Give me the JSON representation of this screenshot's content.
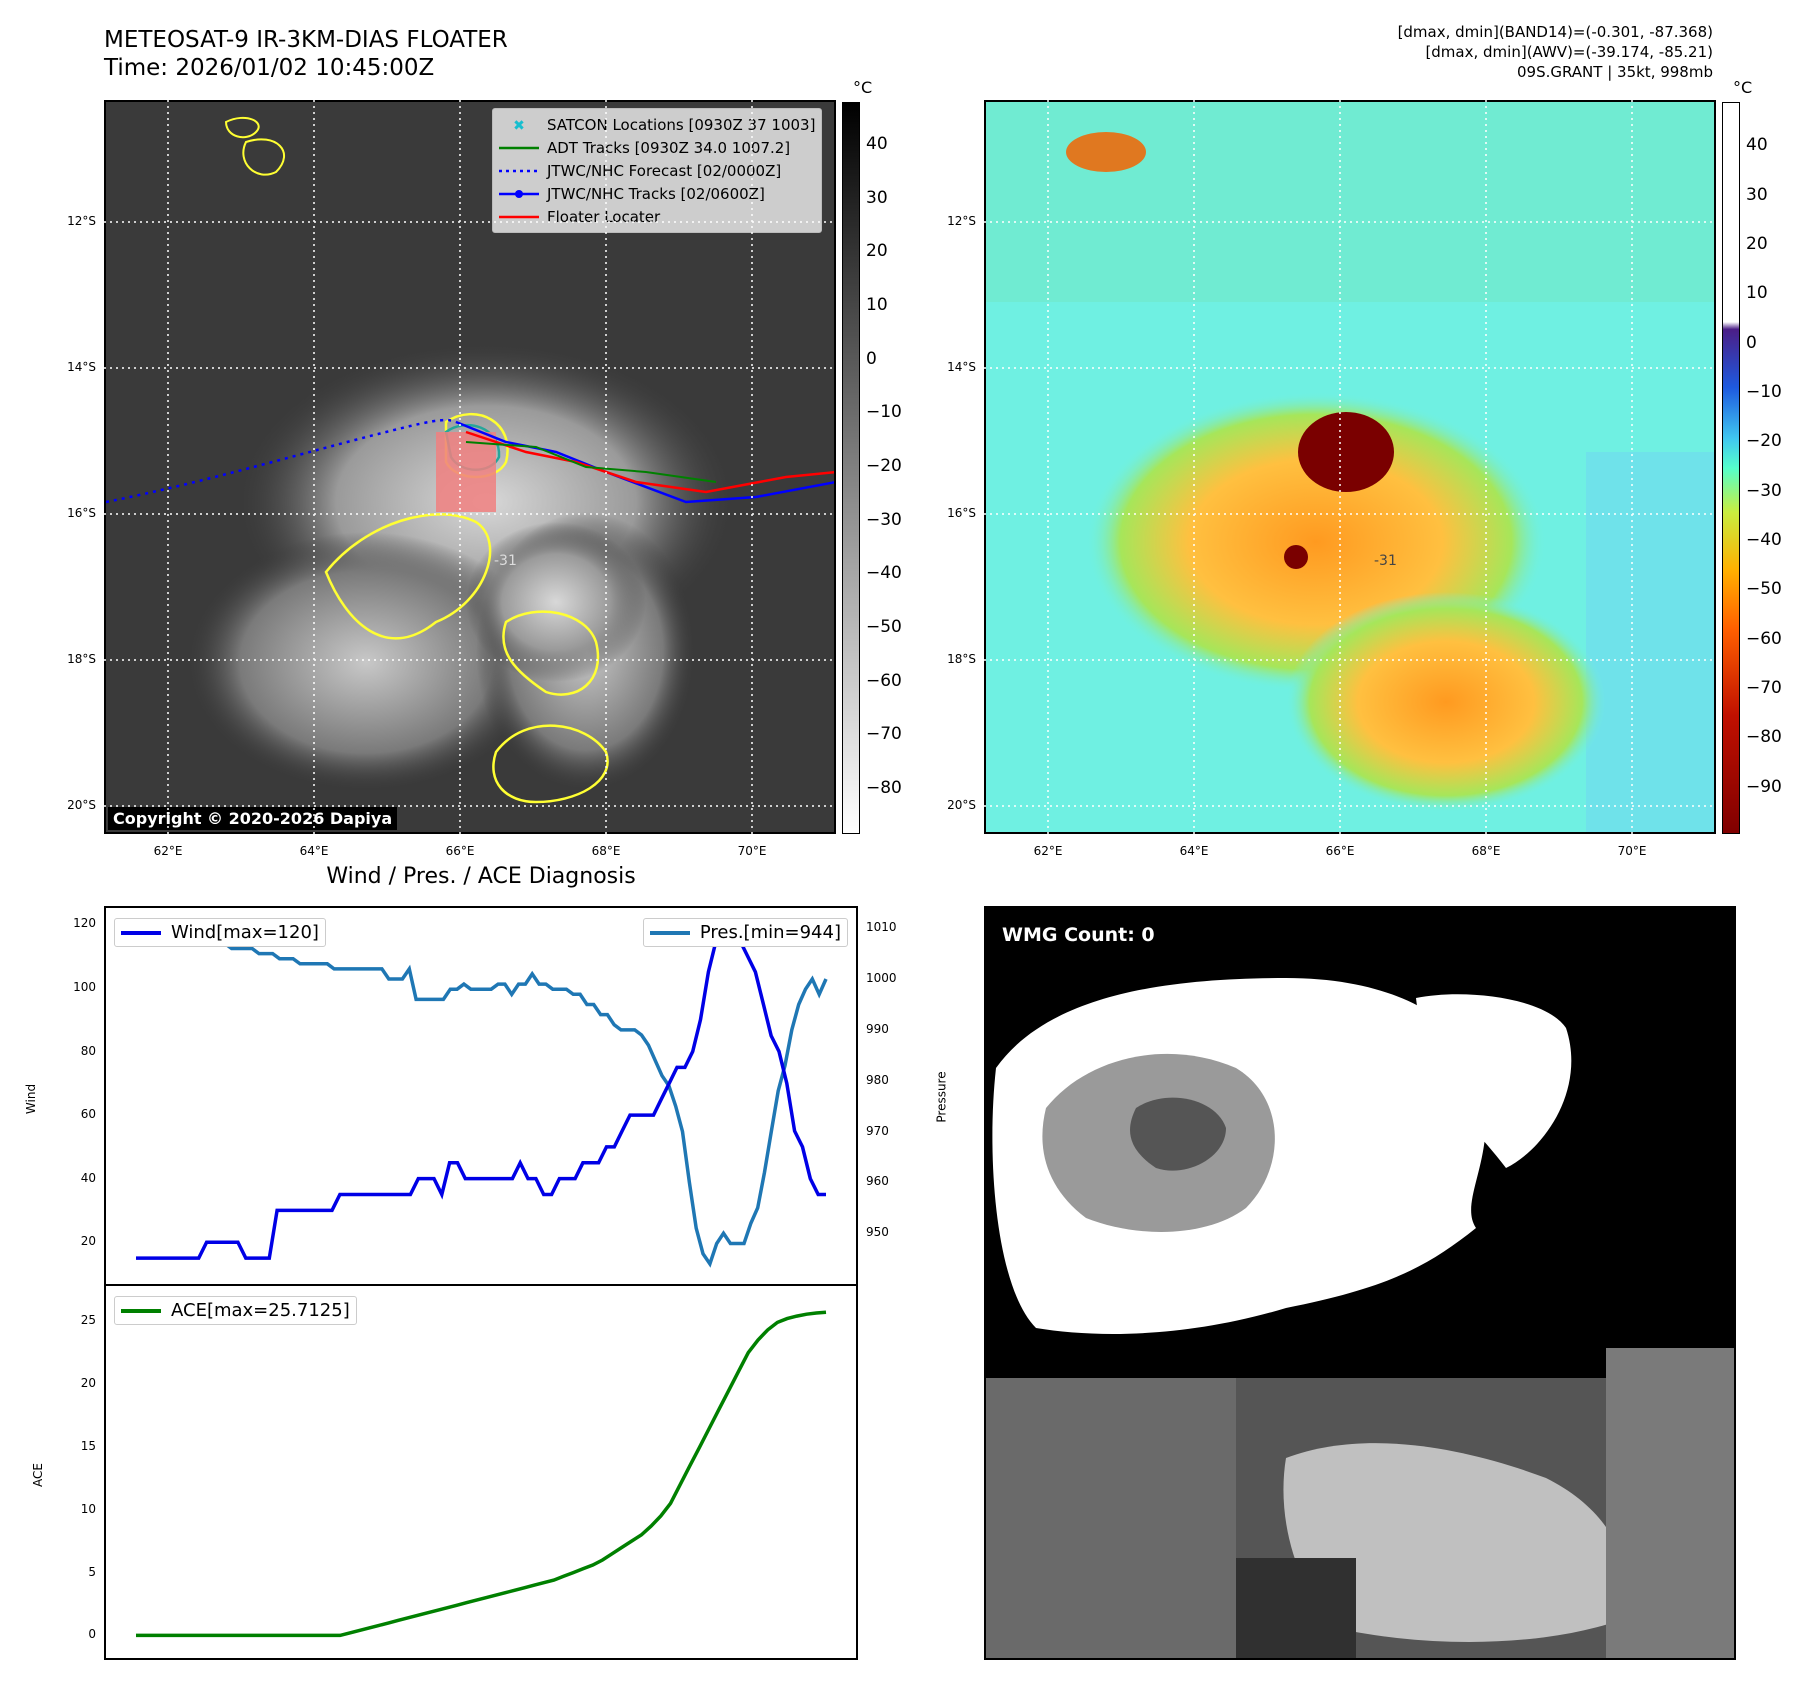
{
  "header": {
    "title_line1": "METEOSAT-9 IR-3KM-DIAS FLOATER",
    "title_line2": "Time: 2026/01/02 10:45:00Z",
    "info_line1": "[dmax, dmin](BAND14)=(-0.301, -87.368)",
    "info_line2": "[dmax, dmin](AWV)=(-39.174, -85.21)",
    "info_line3": "09S.GRANT | 35kt, 998mb"
  },
  "map": {
    "lat_labels": [
      "12°S",
      "14°S",
      "16°S",
      "18°S",
      "20°S"
    ],
    "lon_labels": [
      "62°E",
      "64°E",
      "66°E",
      "68°E",
      "70°E"
    ],
    "contour_label": "-31",
    "copyright": "Copyright © 2020-2026 Dapiya",
    "legend": [
      {
        "label": "SATCON Locations [0930Z 37 1003]",
        "color": "#17becf"
      },
      {
        "label": "ADT Tracks [0930Z 34.0 1007.2]",
        "color": "#008000"
      },
      {
        "label": "JTWC/NHC Forecast [02/0000Z]",
        "color": "#0000ff"
      },
      {
        "label": "JTWC/NHC Tracks [02/0600Z]",
        "color": "#0000ff"
      },
      {
        "label": "Floater Locater",
        "color": "#ff0000"
      }
    ]
  },
  "colorbar_ir": {
    "unit": "°C",
    "ticks": [
      "40",
      "30",
      "20",
      "10",
      "0",
      "−10",
      "−20",
      "−30",
      "−40",
      "−50",
      "−60",
      "−70",
      "−80"
    ]
  },
  "colorbar_awv": {
    "unit": "°C",
    "ticks": [
      "40",
      "30",
      "20",
      "10",
      "0",
      "−10",
      "−20",
      "−30",
      "−40",
      "−50",
      "−60",
      "−70",
      "−80",
      "−90"
    ]
  },
  "diag": {
    "title": "Wind / Pres. / ACE Diagnosis",
    "wind_ylabel": "Wind",
    "pres_ylabel": "Pressure",
    "ace_ylabel": "ACE",
    "wind_legend": "Wind[max=120]",
    "pres_legend": "Pres.[min=944]",
    "ace_legend": "ACE[max=25.7125]",
    "wind_ticks": [
      "120",
      "100",
      "80",
      "60",
      "40",
      "20"
    ],
    "pres_ticks": [
      "1010",
      "1000",
      "990",
      "980",
      "970",
      "960",
      "950"
    ],
    "ace_ticks": [
      "25",
      "20",
      "15",
      "10",
      "5",
      "0"
    ]
  },
  "wmg": {
    "label": "WMG Count: 0"
  },
  "chart_data": [
    {
      "type": "line",
      "title": "Wind / Pres. / ACE Diagnosis",
      "series": [
        {
          "name": "Wind[max=120]",
          "color": "#0000e6",
          "values": [
            15,
            15,
            15,
            15,
            15,
            15,
            15,
            15,
            15,
            20,
            20,
            20,
            20,
            20,
            15,
            15,
            15,
            15,
            30,
            30,
            30,
            30,
            30,
            30,
            30,
            30,
            35,
            35,
            35,
            35,
            35,
            35,
            35,
            35,
            35,
            35,
            40,
            40,
            40,
            35,
            45,
            45,
            40,
            40,
            40,
            40,
            40,
            40,
            40,
            45,
            40,
            40,
            35,
            35,
            40,
            40,
            40,
            45,
            45,
            45,
            50,
            50,
            55,
            60,
            60,
            60,
            60,
            65,
            70,
            75,
            75,
            80,
            90,
            105,
            115,
            120,
            118,
            115,
            110,
            105,
            95,
            85,
            80,
            70,
            55,
            50,
            40,
            35,
            35
          ]
        },
        {
          "name": "Pres.[min=944]",
          "color": "#1f77b4",
          "values": [
            1009,
            1009,
            1008,
            1008,
            1008,
            1008,
            1008,
            1008,
            1008,
            1008,
            1007,
            1007,
            1007,
            1007,
            1006,
            1006,
            1006,
            1006,
            1005,
            1005,
            1005,
            1004,
            1004,
            1004,
            1003,
            1003,
            1003,
            1003,
            1003,
            1002,
            1002,
            1002,
            1002,
            1002,
            1002,
            1002,
            1002,
            1000,
            1000,
            1000,
            1002,
            996,
            996,
            996,
            996,
            996,
            998,
            998,
            999,
            998,
            998,
            998,
            998,
            999,
            999,
            997,
            999,
            999,
            1001,
            999,
            999,
            998,
            998,
            998,
            997,
            997,
            995,
            995,
            993,
            993,
            991,
            990,
            990,
            990,
            989,
            987,
            984,
            981,
            979,
            975,
            970,
            960,
            951,
            946,
            944,
            948,
            950,
            948,
            948,
            948,
            952,
            955,
            962,
            970,
            978,
            983,
            990,
            995,
            998,
            1000,
            997,
            1000
          ]
        },
        {
          "name": "ACE[max=25.7125]",
          "color": "#008000",
          "values": [
            0,
            0,
            0,
            0,
            0,
            0,
            0,
            0,
            0,
            0,
            0,
            0,
            0,
            0,
            0,
            0,
            0,
            0,
            0,
            0,
            0,
            0,
            0.2,
            0.4,
            0.6,
            0.8,
            1.0,
            1.2,
            1.4,
            1.6,
            1.8,
            2.0,
            2.2,
            2.4,
            2.6,
            2.8,
            3.0,
            3.2,
            3.4,
            3.6,
            3.8,
            4.0,
            4.2,
            4.4,
            4.7,
            5.0,
            5.3,
            5.6,
            6.0,
            6.5,
            7.0,
            7.5,
            8.0,
            8.7,
            9.5,
            10.5,
            12.0,
            13.5,
            15.0,
            16.5,
            18.0,
            19.5,
            21.0,
            22.5,
            23.5,
            24.3,
            24.9,
            25.2,
            25.4,
            25.55,
            25.65,
            25.7125
          ]
        }
      ],
      "ylim_wind": [
        10,
        122
      ],
      "ylim_pres": [
        942,
        1012
      ],
      "ylim_ace": [
        -1,
        27
      ]
    }
  ]
}
